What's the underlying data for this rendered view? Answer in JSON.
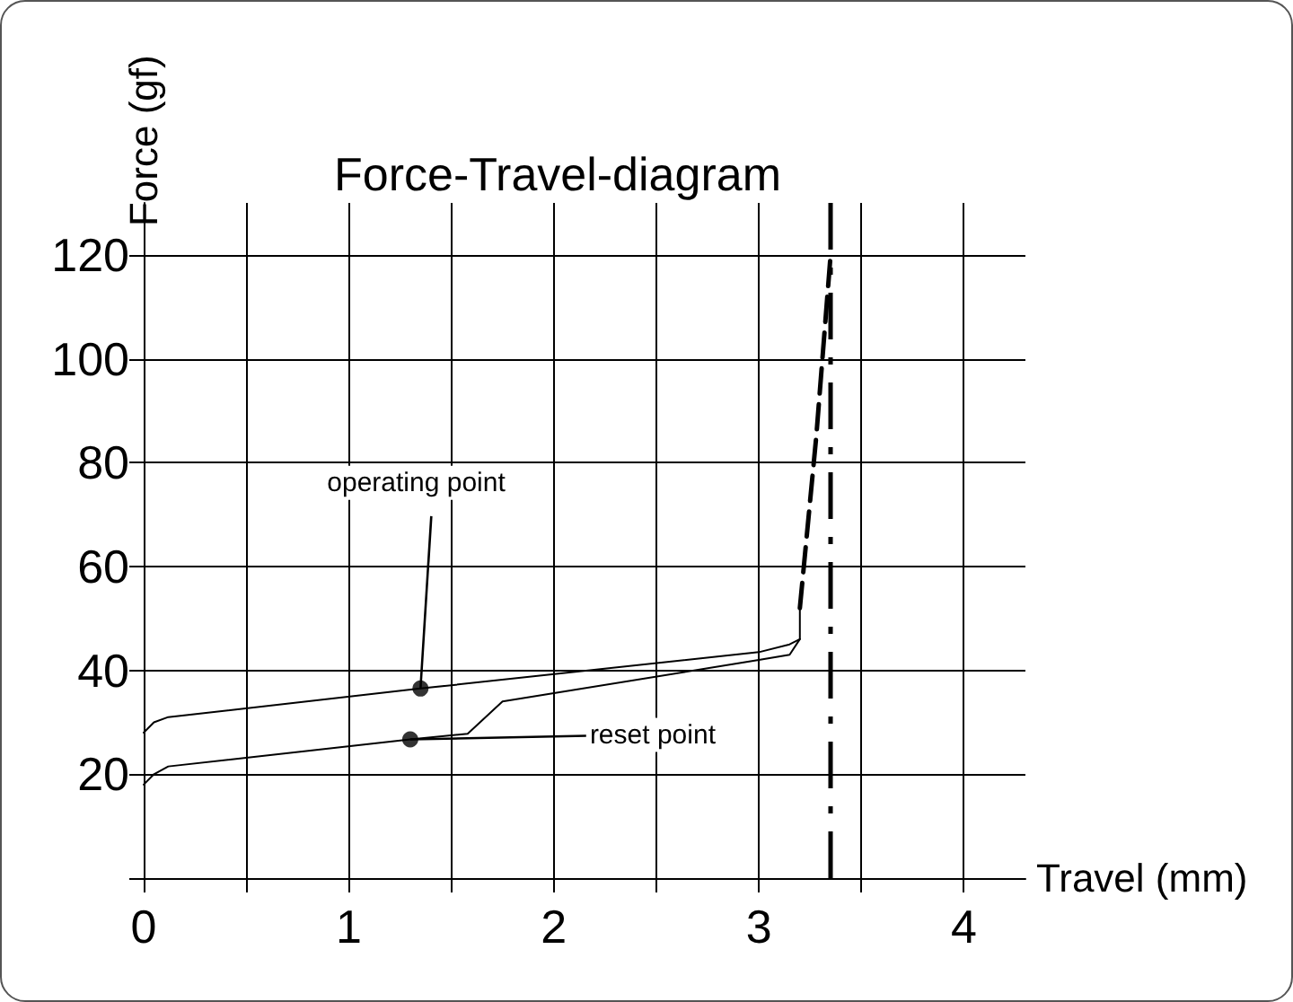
{
  "chart_data": {
    "type": "line",
    "title": "Force-Travel-diagram",
    "xlabel": "Travel (mm)",
    "ylabel": "Force (gf)",
    "series": [
      {
        "color": "#000000",
        "line_style": "solid",
        "x": [
          0,
          0.05,
          0.12,
          1.35,
          3.0,
          3.15,
          3.2,
          3.2
        ],
        "values": [
          28,
          30,
          31,
          36.5,
          43.5,
          45,
          46,
          52
        ]
      },
      {
        "color": "#000000",
        "line_style": "dashed",
        "x": [
          3.2,
          3.28,
          3.35
        ],
        "values": [
          52,
          85,
          120
        ]
      },
      {
        "color": "#000000",
        "line_style": "solid",
        "x": [
          0,
          0.05,
          0.12,
          1.3,
          1.58,
          1.75,
          3.0,
          3.15,
          3.2
        ],
        "values": [
          18,
          20,
          21.5,
          26.7,
          27.8,
          34,
          42,
          43,
          46
        ]
      },
      {
        "type": "scatter",
        "marker": "circle",
        "color": "#000000",
        "x": [
          1.35,
          1.3
        ],
        "values": [
          36.5,
          26.7
        ]
      }
    ],
    "annotations": [
      {
        "text": "operating point",
        "x": 1.35,
        "y": 36.5
      },
      {
        "text": "reset point",
        "x": 1.3,
        "y": 26.7
      }
    ],
    "ref_lines": [
      {
        "axis": "x",
        "value": 3.35,
        "color": "#000000",
        "line_style": "dashed"
      }
    ],
    "xlim": [
      0,
      4.3
    ],
    "xticks": [
      0,
      {
        "value": 0.5,
        "label": null
      },
      1,
      {
        "value": 1.5,
        "label": null
      },
      2,
      {
        "value": 2.5,
        "label": null
      },
      3,
      {
        "value": 3.5,
        "label": null
      },
      4
    ],
    "ylim": [
      0,
      130
    ],
    "yticks": [
      {
        "value": 0,
        "label": null
      },
      20,
      40,
      60,
      80,
      100,
      120
    ],
    "grid": true
  }
}
